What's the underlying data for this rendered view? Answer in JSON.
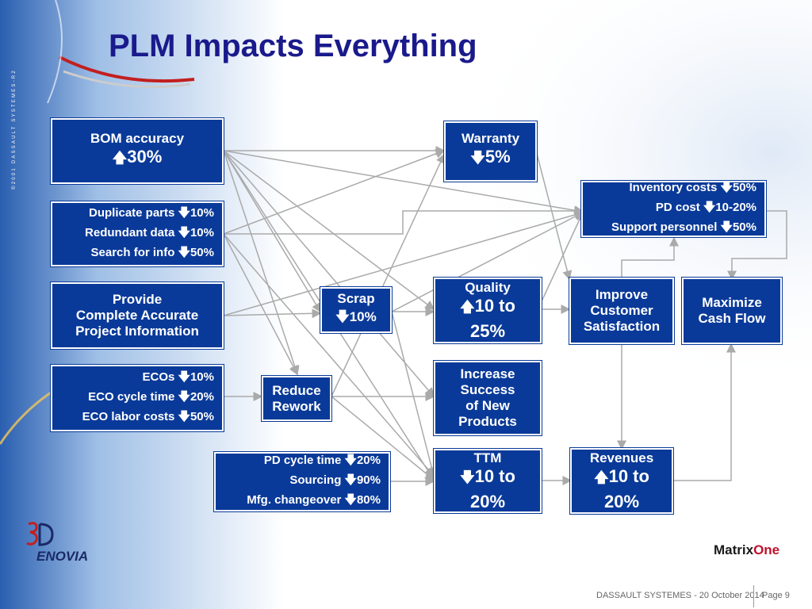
{
  "slide": {
    "title": "PLM Impacts Everything",
    "side_text": "©2001 DASSAULT SYSTEMES-R2",
    "footer_left": "DASSAULT SYSTEMES - 20 October 2014",
    "footer_right": "Page 9",
    "logo_left": "ENOVIA",
    "logo_right_a": "Matrix",
    "logo_right_b": "One"
  },
  "colors": {
    "box": "#0a3a99",
    "title": "#1a1a8c",
    "line": "#aaaaaa"
  },
  "nodes": {
    "bom": {
      "label": "BOM accuracy",
      "value": "30%",
      "arrow": "up-arrow-icon"
    },
    "dup": {
      "l1": "Duplicate parts",
      "v1": "10%",
      "l2": "Redundant data",
      "v2": "10%",
      "l3": "Search for info",
      "v3": "50%"
    },
    "provide": {
      "l1": "Provide",
      "l2": "Complete Accurate",
      "l3": "Project Information"
    },
    "eco": {
      "l1": "ECOs",
      "v1": "10%",
      "l2": "ECO cycle time",
      "v2": "20%",
      "l3": "ECO labor costs",
      "v3": "50%"
    },
    "scrap": {
      "label": "Scrap",
      "value": "10%"
    },
    "rework": {
      "l1": "Reduce",
      "l2": "Rework"
    },
    "pd": {
      "l1": "PD cycle time",
      "v1": "20%",
      "l2": "Sourcing",
      "v2": "90%",
      "l3": "Mfg. changeover",
      "v3": "80%"
    },
    "warranty": {
      "label": "Warranty",
      "value": "5%"
    },
    "quality": {
      "label": "Quality",
      "value": "10 to",
      "value2": "25%"
    },
    "increase": {
      "l1": "Increase",
      "l2": "Success",
      "l3": "of New",
      "l4": "Products"
    },
    "ttm": {
      "label": "TTM",
      "value": "10 to",
      "value2": "20%"
    },
    "inventory": {
      "l1": "Inventory costs",
      "v1": "50%",
      "l2": "PD cost",
      "v2": "10-20%",
      "l3": "Support personnel",
      "v3": "50%"
    },
    "improve": {
      "l1": "Improve",
      "l2": "Customer",
      "l3": "Satisfaction"
    },
    "revenues": {
      "label": "Revenues",
      "value": "10 to",
      "value2": "20%"
    },
    "cash": {
      "l1": "Maximize",
      "l2": "Cash Flow"
    }
  },
  "glyphs": {
    "up": "🡅",
    "down": "🡇"
  }
}
